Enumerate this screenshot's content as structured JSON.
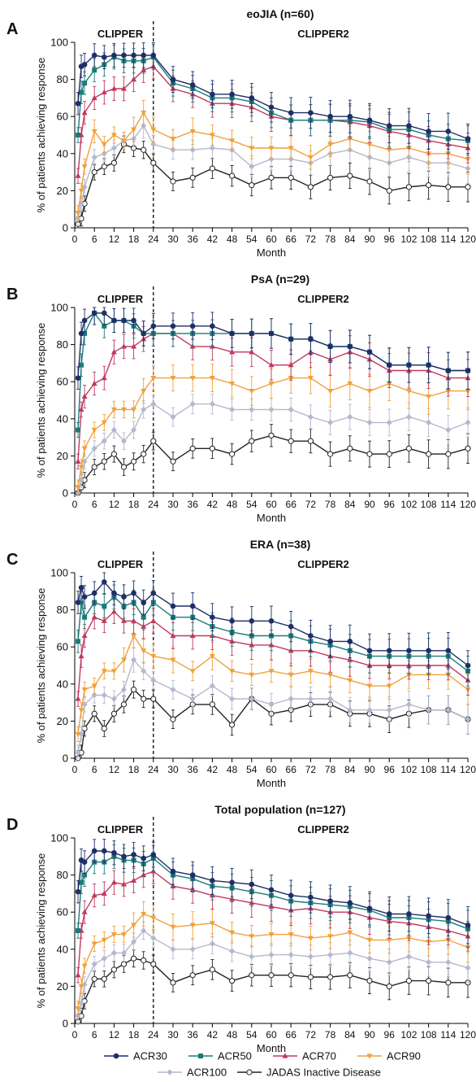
{
  "chart_data": [
    {
      "type": "line",
      "panel_label": "A",
      "title": "eoJIA (n=60)",
      "region_labels": [
        "CLIPPER",
        "CLIPPER2"
      ],
      "xlabel": "Month",
      "ylabel": "% of patients achieving response",
      "x_ticks": [
        0,
        6,
        12,
        18,
        24,
        30,
        36,
        42,
        48,
        54,
        60,
        66,
        72,
        78,
        84,
        90,
        96,
        102,
        108,
        114,
        120
      ],
      "y_ticks": [
        0,
        20,
        40,
        60,
        80,
        100
      ],
      "xlim": [
        0,
        120
      ],
      "ylim": [
        0,
        100
      ],
      "divider_x": 24,
      "x": [
        1,
        2,
        3,
        6,
        9,
        12,
        15,
        18,
        21,
        24,
        30,
        36,
        42,
        48,
        54,
        60,
        66,
        72,
        78,
        84,
        90,
        96,
        102,
        108,
        114,
        120
      ],
      "series": [
        {
          "key": "acr30",
          "values": [
            67,
            87,
            88,
            93,
            92,
            93,
            93,
            93,
            93,
            93,
            80,
            77,
            72,
            72,
            70,
            65,
            62,
            62,
            60,
            60,
            58,
            55,
            55,
            52,
            52,
            48
          ]
        },
        {
          "key": "acr50",
          "values": [
            50,
            73,
            78,
            85,
            88,
            92,
            90,
            90,
            90,
            92,
            78,
            75,
            70,
            70,
            68,
            62,
            58,
            58,
            58,
            58,
            57,
            53,
            53,
            50,
            48,
            47
          ]
        },
        {
          "key": "acr70",
          "values": [
            28,
            50,
            62,
            70,
            73,
            75,
            75,
            80,
            85,
            87,
            75,
            72,
            67,
            67,
            65,
            60,
            58,
            58,
            58,
            57,
            55,
            52,
            50,
            47,
            45,
            43
          ]
        },
        {
          "key": "acr90",
          "values": [
            8,
            20,
            33,
            52,
            45,
            50,
            47,
            53,
            62,
            53,
            48,
            52,
            50,
            47,
            43,
            43,
            43,
            38,
            45,
            48,
            45,
            42,
            43,
            40,
            40,
            37
          ]
        },
        {
          "key": "acr100",
          "values": [
            5,
            13,
            22,
            38,
            40,
            43,
            47,
            48,
            55,
            45,
            42,
            42,
            43,
            42,
            33,
            37,
            37,
            35,
            40,
            42,
            38,
            35,
            38,
            35,
            35,
            32
          ]
        },
        {
          "key": "jadas",
          "values": [
            2,
            5,
            13,
            30,
            33,
            35,
            45,
            43,
            42,
            35,
            25,
            27,
            32,
            28,
            23,
            27,
            27,
            22,
            27,
            28,
            25,
            20,
            22,
            23,
            22,
            22
          ]
        }
      ]
    },
    {
      "type": "line",
      "panel_label": "B",
      "title": "PsA (n=29)",
      "region_labels": [
        "CLIPPER",
        "CLIPPER2"
      ],
      "xlabel": "Month",
      "ylabel": "% of patients achieving response",
      "x_ticks": [
        0,
        6,
        12,
        18,
        24,
        30,
        36,
        42,
        48,
        54,
        60,
        66,
        72,
        78,
        84,
        90,
        96,
        102,
        108,
        114,
        120
      ],
      "y_ticks": [
        0,
        20,
        40,
        60,
        80,
        100
      ],
      "xlim": [
        0,
        120
      ],
      "ylim": [
        0,
        100
      ],
      "divider_x": 24,
      "x": [
        1,
        2,
        3,
        6,
        9,
        12,
        15,
        18,
        21,
        24,
        30,
        36,
        42,
        48,
        54,
        60,
        66,
        72,
        78,
        84,
        90,
        96,
        102,
        108,
        114,
        120
      ],
      "series": [
        {
          "key": "acr30",
          "values": [
            62,
            86,
            93,
            97,
            97,
            93,
            93,
            93,
            86,
            90,
            90,
            90,
            90,
            86,
            86,
            86,
            83,
            83,
            79,
            79,
            76,
            69,
            69,
            69,
            66,
            66
          ]
        },
        {
          "key": "acr50",
          "values": [
            34,
            69,
            86,
            97,
            90,
            93,
            93,
            90,
            86,
            86,
            86,
            86,
            86,
            86,
            86,
            86,
            83,
            83,
            79,
            79,
            76,
            69,
            69,
            69,
            66,
            66
          ]
        },
        {
          "key": "acr70",
          "values": [
            17,
            45,
            52,
            59,
            62,
            76,
            79,
            79,
            83,
            86,
            86,
            79,
            79,
            76,
            76,
            69,
            69,
            76,
            72,
            76,
            72,
            66,
            66,
            66,
            62,
            62
          ]
        },
        {
          "key": "acr90",
          "values": [
            3,
            14,
            24,
            34,
            38,
            45,
            45,
            45,
            55,
            62,
            62,
            62,
            62,
            59,
            55,
            59,
            62,
            62,
            55,
            59,
            55,
            59,
            55,
            52,
            55,
            55
          ]
        },
        {
          "key": "acr100",
          "values": [
            0,
            7,
            17,
            24,
            28,
            34,
            28,
            34,
            45,
            48,
            41,
            48,
            48,
            45,
            45,
            45,
            45,
            41,
            38,
            41,
            38,
            38,
            41,
            38,
            34,
            38
          ]
        },
        {
          "key": "jadas",
          "values": [
            0,
            3,
            7,
            14,
            17,
            21,
            14,
            17,
            21,
            28,
            17,
            24,
            24,
            21,
            28,
            31,
            28,
            28,
            21,
            24,
            21,
            21,
            24,
            21,
            21,
            24
          ]
        }
      ]
    },
    {
      "type": "line",
      "panel_label": "C",
      "title": "ERA (n=38)",
      "region_labels": [
        "CLIPPER",
        "CLIPPER2"
      ],
      "xlabel": "Month",
      "ylabel": "% of patients achieving response",
      "x_ticks": [
        0,
        6,
        12,
        18,
        24,
        30,
        36,
        42,
        48,
        54,
        60,
        66,
        72,
        78,
        84,
        90,
        96,
        102,
        108,
        114,
        120
      ],
      "y_ticks": [
        0,
        20,
        40,
        60,
        80,
        100
      ],
      "xlim": [
        0,
        120
      ],
      "ylim": [
        0,
        100
      ],
      "divider_x": 24,
      "x": [
        1,
        2,
        3,
        6,
        9,
        12,
        15,
        18,
        21,
        24,
        30,
        36,
        42,
        48,
        54,
        60,
        66,
        72,
        78,
        84,
        90,
        96,
        102,
        108,
        114,
        120
      ],
      "series": [
        {
          "key": "acr30",
          "values": [
            84,
            92,
            87,
            89,
            95,
            89,
            87,
            89,
            84,
            89,
            82,
            82,
            76,
            74,
            74,
            74,
            71,
            66,
            63,
            63,
            58,
            58,
            58,
            58,
            58,
            50
          ]
        },
        {
          "key": "acr50",
          "values": [
            63,
            84,
            76,
            84,
            82,
            87,
            82,
            84,
            76,
            84,
            76,
            76,
            71,
            68,
            66,
            66,
            66,
            63,
            61,
            58,
            55,
            55,
            55,
            55,
            55,
            47
          ]
        },
        {
          "key": "acr70",
          "values": [
            32,
            55,
            66,
            76,
            74,
            79,
            74,
            74,
            71,
            74,
            66,
            66,
            66,
            63,
            61,
            61,
            58,
            58,
            55,
            53,
            50,
            50,
            50,
            50,
            50,
            42
          ]
        },
        {
          "key": "acr90",
          "values": [
            13,
            26,
            37,
            39,
            47,
            47,
            53,
            66,
            58,
            55,
            53,
            47,
            55,
            47,
            45,
            47,
            45,
            47,
            45,
            42,
            39,
            39,
            45,
            45,
            45,
            37
          ]
        },
        {
          "key": "acr100",
          "values": [
            3,
            13,
            29,
            34,
            34,
            32,
            37,
            53,
            47,
            42,
            37,
            32,
            39,
            32,
            32,
            29,
            32,
            32,
            32,
            26,
            26,
            26,
            29,
            26,
            26,
            21
          ]
        },
        {
          "key": "jadas",
          "values": [
            0,
            3,
            16,
            24,
            16,
            24,
            29,
            37,
            32,
            32,
            21,
            29,
            29,
            18,
            32,
            24,
            26,
            29,
            29,
            24,
            24,
            21,
            24,
            26,
            26,
            21
          ]
        }
      ]
    },
    {
      "type": "line",
      "panel_label": "D",
      "title": "Total population (n=127)",
      "region_labels": [
        "CLIPPER",
        "CLIPPER2"
      ],
      "xlabel": "Month",
      "ylabel": "% of patients achieving response",
      "x_ticks": [
        0,
        6,
        12,
        18,
        24,
        30,
        36,
        42,
        48,
        54,
        60,
        66,
        72,
        78,
        84,
        90,
        96,
        102,
        108,
        114,
        120
      ],
      "y_ticks": [
        0,
        20,
        40,
        60,
        80,
        100
      ],
      "xlim": [
        0,
        120
      ],
      "ylim": [
        0,
        100
      ],
      "divider_x": 24,
      "x": [
        1,
        2,
        3,
        6,
        9,
        12,
        15,
        18,
        21,
        24,
        30,
        36,
        42,
        48,
        54,
        60,
        66,
        72,
        78,
        84,
        90,
        96,
        102,
        108,
        114,
        120
      ],
      "series": [
        {
          "key": "acr30",
          "values": [
            71,
            88,
            87,
            93,
            93,
            92,
            90,
            91,
            89,
            91,
            82,
            80,
            77,
            76,
            75,
            72,
            69,
            68,
            66,
            65,
            62,
            59,
            59,
            58,
            57,
            53
          ]
        },
        {
          "key": "acr50",
          "values": [
            50,
            76,
            80,
            87,
            87,
            90,
            88,
            88,
            86,
            89,
            80,
            78,
            74,
            73,
            71,
            69,
            66,
            65,
            64,
            63,
            61,
            57,
            57,
            56,
            55,
            51
          ]
        },
        {
          "key": "acr70",
          "values": [
            26,
            50,
            60,
            69,
            70,
            76,
            75,
            77,
            80,
            82,
            74,
            72,
            69,
            67,
            65,
            63,
            61,
            62,
            60,
            60,
            57,
            55,
            54,
            52,
            50,
            47
          ]
        },
        {
          "key": "acr90",
          "values": [
            8,
            20,
            31,
            43,
            45,
            48,
            48,
            53,
            59,
            57,
            52,
            53,
            54,
            49,
            47,
            48,
            48,
            46,
            47,
            49,
            45,
            45,
            46,
            44,
            45,
            41
          ]
        },
        {
          "key": "acr100",
          "values": [
            4,
            11,
            21,
            32,
            35,
            38,
            38,
            44,
            50,
            46,
            40,
            40,
            43,
            39,
            36,
            37,
            37,
            36,
            37,
            38,
            35,
            33,
            36,
            33,
            33,
            30
          ]
        },
        {
          "key": "jadas",
          "values": [
            1,
            4,
            12,
            24,
            24,
            29,
            32,
            35,
            34,
            32,
            22,
            26,
            29,
            23,
            26,
            26,
            26,
            25,
            25,
            26,
            23,
            20,
            23,
            23,
            22,
            22
          ]
        }
      ]
    }
  ],
  "legend": [
    {
      "key": "acr30",
      "label": "ACR30",
      "color": "#1f2f66",
      "marker": "circle"
    },
    {
      "key": "acr50",
      "label": "ACR50",
      "color": "#1c7a7a",
      "marker": "square"
    },
    {
      "key": "acr70",
      "label": "ACR70",
      "color": "#c0395f",
      "marker": "triangle-up"
    },
    {
      "key": "acr90",
      "label": "ACR90",
      "color": "#f0a13c",
      "marker": "triangle-down"
    },
    {
      "key": "acr100",
      "label": "ACR100",
      "color": "#b5b8cc",
      "marker": "diamond"
    },
    {
      "key": "jadas",
      "label": "JADAS Inactive Disease",
      "color": "#222222",
      "marker": "open-circle"
    }
  ]
}
